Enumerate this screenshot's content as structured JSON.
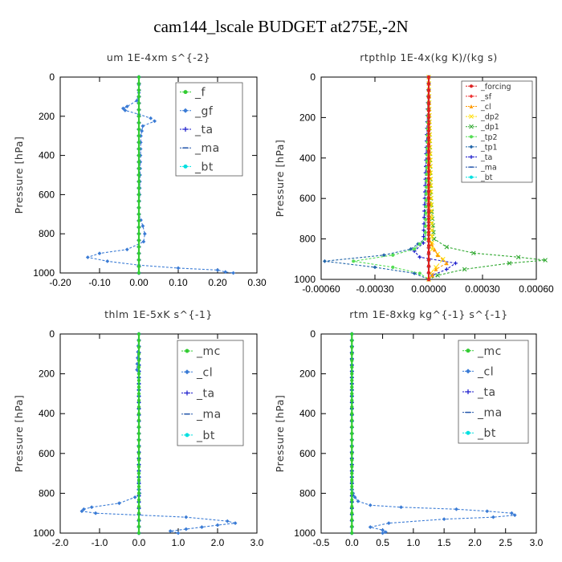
{
  "figure": {
    "title": "cam144_lscale  BUDGET at275E,-2N"
  },
  "chart_data": [
    {
      "type": "line",
      "title": "um  1E-4xm s^{-2}",
      "ylabel": "Pressure [hPa]",
      "xlim": [
        -0.2,
        0.3
      ],
      "ylim": [
        1000,
        0
      ],
      "xticks": [
        "-0.20",
        "-0.10",
        "0.00",
        "0.10",
        "0.20",
        "0.30"
      ],
      "xtick_values": [
        -0.2,
        -0.1,
        0.0,
        0.1,
        0.2,
        0.3
      ],
      "yticks": [
        0,
        200,
        400,
        600,
        800,
        1000
      ],
      "legend": "top-right",
      "series": [
        {
          "name": "_f",
          "color": "#33cc33",
          "marker": "circle",
          "y": [
            0,
            100,
            200,
            300,
            400,
            500,
            600,
            700,
            800,
            900,
            1000
          ],
          "x": [
            0,
            0,
            0,
            0,
            0,
            0,
            0,
            0,
            0,
            0,
            0
          ]
        },
        {
          "name": "_gf",
          "color": "#3a7bd5",
          "marker": "diamond",
          "y": [
            0,
            80,
            120,
            150,
            160,
            170,
            190,
            210,
            225,
            250,
            300,
            400,
            500,
            600,
            700,
            760,
            800,
            840,
            880,
            900,
            920,
            940,
            960,
            975,
            985,
            995,
            1000
          ],
          "x": [
            0,
            0,
            -0.005,
            -0.03,
            -0.04,
            -0.035,
            0.0,
            0.03,
            0.04,
            0.01,
            0.005,
            0.004,
            0.003,
            0.002,
            0.0,
            0.01,
            0.015,
            0.012,
            -0.03,
            -0.1,
            -0.13,
            -0.08,
            0.0,
            0.1,
            0.2,
            0.22,
            0.24
          ]
        },
        {
          "name": "_ta",
          "color": "#1a1acc",
          "marker": "plus",
          "y": [
            0,
            300,
            600,
            900,
            1000
          ],
          "x": [
            0,
            0,
            0,
            0,
            0
          ]
        },
        {
          "name": "_ma",
          "color": "#2255aa",
          "marker": "dash",
          "y": [
            0,
            300,
            600,
            900,
            1000
          ],
          "x": [
            0,
            0,
            0,
            0,
            0
          ]
        },
        {
          "name": "_bt",
          "color": "#00e0e0",
          "marker": "circle",
          "y": [
            0,
            300,
            600,
            900,
            1000
          ],
          "x": [
            0,
            0,
            0,
            0,
            0
          ]
        }
      ]
    },
    {
      "type": "line",
      "title": "rtpthlp  1E-4x(kg K)/(kg s)",
      "ylabel": "Pressure [hPa]",
      "xlim": [
        -0.0006,
        0.0006
      ],
      "ylim": [
        1000,
        0
      ],
      "xticks": [
        "-0.00060",
        "-0.00030",
        "0.00000",
        "0.00030",
        "0.00060"
      ],
      "xtick_values": [
        -0.0006,
        -0.0003,
        0.0,
        0.0003,
        0.0006
      ],
      "yticks": [
        0,
        200,
        400,
        600,
        800,
        1000
      ],
      "legend": "top-right",
      "series": [
        {
          "name": "_forcing",
          "color": "#dd2222",
          "marker": "circle",
          "y": [
            0,
            100,
            200,
            300,
            400,
            500,
            600,
            700,
            800,
            900,
            1000
          ],
          "x": [
            0,
            0,
            0,
            0,
            0,
            0,
            0,
            0,
            0,
            0,
            0
          ]
        },
        {
          "name": "_sf",
          "color": "#ee3333",
          "marker": "diamond",
          "y": [
            0,
            500,
            1000
          ],
          "x": [
            0,
            0,
            0
          ]
        },
        {
          "name": "_cl",
          "color": "#ff9900",
          "marker": "triangle",
          "y": [
            0,
            800,
            880,
            920,
            950,
            980,
            1000
          ],
          "x": [
            0,
            0,
            5e-05,
            0.0001,
            4e-05,
            2e-05,
            0
          ]
        },
        {
          "name": "_dp2",
          "color": "#ffdd00",
          "marker": "x",
          "y": [
            0,
            850,
            900,
            940,
            970,
            1000
          ],
          "x": [
            0,
            2e-05,
            8e-05,
            4e-05,
            1e-05,
            0
          ]
        },
        {
          "name": "_dp1",
          "color": "#33aa33",
          "marker": "x",
          "y": [
            0,
            600,
            800,
            840,
            870,
            890,
            905,
            920,
            950,
            980,
            1000
          ],
          "x": [
            0,
            1e-05,
            3e-05,
            0.0001,
            0.00025,
            0.0005,
            0.00065,
            0.00045,
            0.0002,
            5e-05,
            0
          ]
        },
        {
          "name": "_tp2",
          "color": "#55dd55",
          "marker": "circle",
          "y": [
            0,
            800,
            850,
            880,
            910,
            940,
            970,
            1000
          ],
          "x": [
            0,
            -2e-05,
            -8e-05,
            -0.0002,
            -0.00042,
            -0.0002,
            -5e-05,
            0
          ]
        },
        {
          "name": "_tp1",
          "color": "#2266aa",
          "marker": "diamond",
          "y": [
            0,
            800,
            850,
            880,
            910,
            940,
            970,
            1000
          ],
          "x": [
            0,
            -2e-05,
            -0.0001,
            -0.00025,
            -0.00058,
            -0.0003,
            -8e-05,
            0
          ]
        },
        {
          "name": "_ta",
          "color": "#1a1acc",
          "marker": "plus",
          "y": [
            0,
            820,
            860,
            890,
            920,
            950,
            980,
            1000
          ],
          "x": [
            0,
            -3e-05,
            -8e-05,
            -5e-05,
            0.00015,
            0.0001,
            2e-05,
            0
          ]
        },
        {
          "name": "_ma",
          "color": "#2255aa",
          "marker": "dash",
          "y": [
            0,
            500,
            1000
          ],
          "x": [
            0,
            0,
            0
          ]
        },
        {
          "name": "_bt",
          "color": "#00e0e0",
          "marker": "circle",
          "y": [
            0,
            500,
            1000
          ],
          "x": [
            0,
            0,
            0
          ]
        }
      ]
    },
    {
      "type": "line",
      "title": "thlm  1E-5xK s^{-1}",
      "ylabel": "Pressure [hPa]",
      "xlim": [
        -2.0,
        3.0
      ],
      "ylim": [
        1000,
        0
      ],
      "xticks": [
        "-2.0",
        "-1.0",
        "0.0",
        "1.0",
        "2.0",
        "3.0"
      ],
      "xtick_values": [
        -2.0,
        -1.0,
        0.0,
        1.0,
        2.0,
        3.0
      ],
      "yticks": [
        0,
        200,
        400,
        600,
        800,
        1000
      ],
      "legend": "top-right",
      "series": [
        {
          "name": "_mc",
          "color": "#33cc33",
          "marker": "circle",
          "y": [
            0,
            100,
            200,
            300,
            400,
            500,
            600,
            700,
            800,
            900,
            1000
          ],
          "x": [
            0,
            0,
            0,
            0,
            0,
            0,
            0,
            0,
            0,
            0,
            0
          ]
        },
        {
          "name": "_cl",
          "color": "#3a7bd5",
          "marker": "diamond",
          "y": [
            0,
            180,
            200,
            400,
            600,
            700,
            780,
            800,
            820,
            850,
            870,
            880,
            890,
            900,
            920,
            940,
            950,
            960,
            970,
            980,
            990,
            1000
          ],
          "x": [
            0,
            -0.05,
            0,
            0,
            0,
            0,
            0,
            0.02,
            -0.1,
            -0.5,
            -1.2,
            -1.4,
            -1.45,
            -1.1,
            1.2,
            2.25,
            2.45,
            2.0,
            1.6,
            1.2,
            0.8,
            1.0
          ]
        },
        {
          "name": "_ta",
          "color": "#1a1acc",
          "marker": "plus",
          "y": [
            0,
            500,
            1000
          ],
          "x": [
            0,
            0,
            0
          ]
        },
        {
          "name": "_ma",
          "color": "#2255aa",
          "marker": "dash",
          "y": [
            0,
            500,
            1000
          ],
          "x": [
            0,
            0,
            0
          ]
        },
        {
          "name": "_bt",
          "color": "#00e0e0",
          "marker": "circle",
          "y": [
            0,
            500,
            1000
          ],
          "x": [
            0,
            0,
            0
          ]
        }
      ]
    },
    {
      "type": "line",
      "title": "rtm  1E-8xkg kg^{-1} s^{-1}",
      "ylabel": "Pressure [hPa]",
      "xlim": [
        -0.5,
        3.0
      ],
      "ylim": [
        1000,
        0
      ],
      "xticks": [
        "-0.5",
        "0.0",
        "0.5",
        "1.0",
        "1.5",
        "2.0",
        "2.5",
        "3.0"
      ],
      "xtick_values": [
        -0.5,
        0.0,
        0.5,
        1.0,
        1.5,
        2.0,
        2.5,
        3.0
      ],
      "yticks": [
        0,
        200,
        400,
        600,
        800,
        1000
      ],
      "legend": "top-right",
      "series": [
        {
          "name": "_mc",
          "color": "#33cc33",
          "marker": "circle",
          "y": [
            0,
            100,
            200,
            300,
            400,
            500,
            600,
            700,
            800,
            900,
            1000
          ],
          "x": [
            0,
            0,
            0,
            0,
            0,
            0,
            0,
            0,
            0,
            0,
            0
          ]
        },
        {
          "name": "_cl",
          "color": "#3a7bd5",
          "marker": "diamond",
          "y": [
            0,
            200,
            400,
            600,
            700,
            780,
            800,
            820,
            840,
            860,
            870,
            880,
            890,
            900,
            910,
            920,
            930,
            950,
            970,
            985,
            995,
            1000
          ],
          "x": [
            0,
            0,
            0,
            0,
            0,
            0,
            0.02,
            0.05,
            0.1,
            0.3,
            0.8,
            1.7,
            2.2,
            2.6,
            2.65,
            2.3,
            1.5,
            0.6,
            0.3,
            0.5,
            0.55,
            0.5
          ]
        },
        {
          "name": "_ta",
          "color": "#1a1acc",
          "marker": "plus",
          "y": [
            0,
            500,
            1000
          ],
          "x": [
            0,
            0,
            0
          ]
        },
        {
          "name": "_ma",
          "color": "#2255aa",
          "marker": "dash",
          "y": [
            0,
            500,
            1000
          ],
          "x": [
            0,
            0,
            0
          ]
        },
        {
          "name": "_bt",
          "color": "#00e0e0",
          "marker": "circle",
          "y": [
            0,
            500,
            1000
          ],
          "x": [
            0,
            0,
            0
          ]
        }
      ]
    }
  ]
}
